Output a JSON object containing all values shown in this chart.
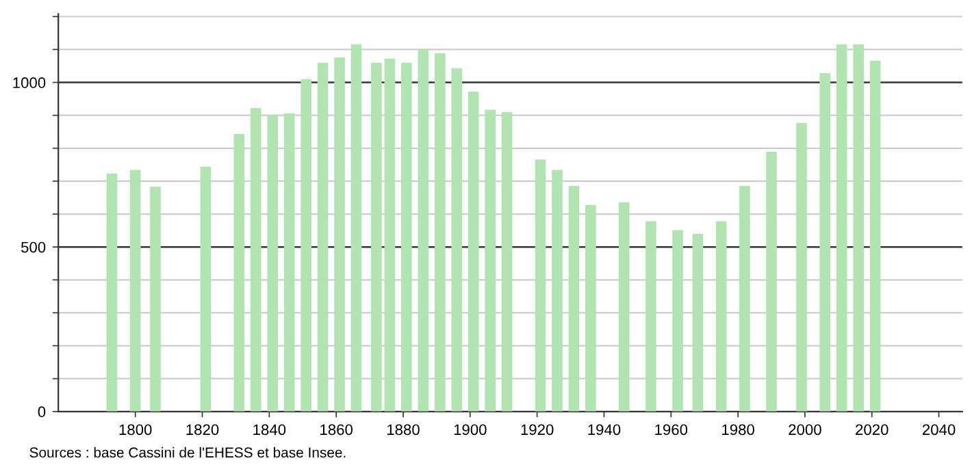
{
  "chart_data": {
    "type": "bar",
    "x": [
      1793,
      1800,
      1806,
      1821,
      1831,
      1836,
      1841,
      1846,
      1851,
      1856,
      1861,
      1866,
      1872,
      1876,
      1881,
      1886,
      1891,
      1896,
      1901,
      1906,
      1911,
      1921,
      1926,
      1931,
      1936,
      1946,
      1954,
      1962,
      1968,
      1975,
      1982,
      1990,
      1999,
      2006,
      2011,
      2016,
      2021
    ],
    "values": [
      723,
      734,
      683,
      744,
      843,
      922,
      900,
      906,
      1010,
      1060,
      1076,
      1116,
      1060,
      1072,
      1060,
      1100,
      1089,
      1043,
      972,
      917,
      910,
      766,
      734,
      686,
      627,
      636,
      578,
      551,
      540,
      578,
      686,
      789,
      877,
      1028,
      1116,
      1116,
      1066
    ],
    "color": "#b2e4b2",
    "xlim": [
      1777,
      2047
    ],
    "xticks": [
      1800,
      1820,
      1840,
      1860,
      1880,
      1900,
      1920,
      1940,
      1960,
      1980,
      2000,
      2020,
      2040
    ],
    "ylim": [
      0,
      1208
    ],
    "yticks": [
      0,
      {
        "value": 100,
        "label": null
      },
      {
        "value": 200,
        "label": null
      },
      {
        "value": 300,
        "label": null
      },
      {
        "value": 400,
        "label": null
      },
      500,
      {
        "value": 600,
        "label": null
      },
      {
        "value": 700,
        "label": null
      },
      {
        "value": 800,
        "label": null
      },
      {
        "value": 900,
        "label": null
      },
      1000,
      {
        "value": 1100,
        "label": null
      },
      {
        "value": 1200,
        "label": null
      }
    ],
    "grid": "y",
    "annotations": [
      "Sources : base Cassini de l'EHESS et base Insee."
    ]
  }
}
